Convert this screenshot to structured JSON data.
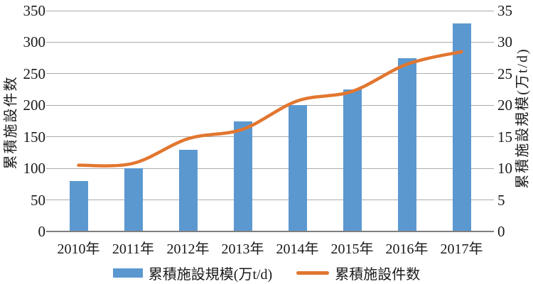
{
  "chart_data": {
    "type": "combo-bar-line",
    "title": "",
    "categories": [
      "2010年",
      "2011年",
      "2012年",
      "2013年",
      "2014年",
      "2015年",
      "2016年",
      "2017年"
    ],
    "series": [
      {
        "name": "累積施設規模(万t/d)",
        "type": "bar",
        "axis": "right",
        "values": [
          8,
          10,
          13,
          17.5,
          20,
          22.5,
          27.5,
          33
        ]
      },
      {
        "name": "累積施設件数",
        "type": "line",
        "axis": "left",
        "values": [
          105,
          108,
          147,
          162,
          207,
          222,
          265,
          285
        ]
      }
    ],
    "axes": {
      "left": {
        "label": "累積施設件数",
        "min": 0,
        "max": 350,
        "step": 50
      },
      "right": {
        "label": "累積施設規模(万t/d)",
        "min": 0,
        "max": 35,
        "step": 5
      }
    },
    "grid": true,
    "legend_position": "bottom"
  },
  "colors": {
    "bar": "#5B98D0",
    "line": "#E2762F",
    "grid": "#ABABAB",
    "axis": "#7F7F7F",
    "text": "#1A1A1A",
    "background": "#FFFFFF"
  }
}
